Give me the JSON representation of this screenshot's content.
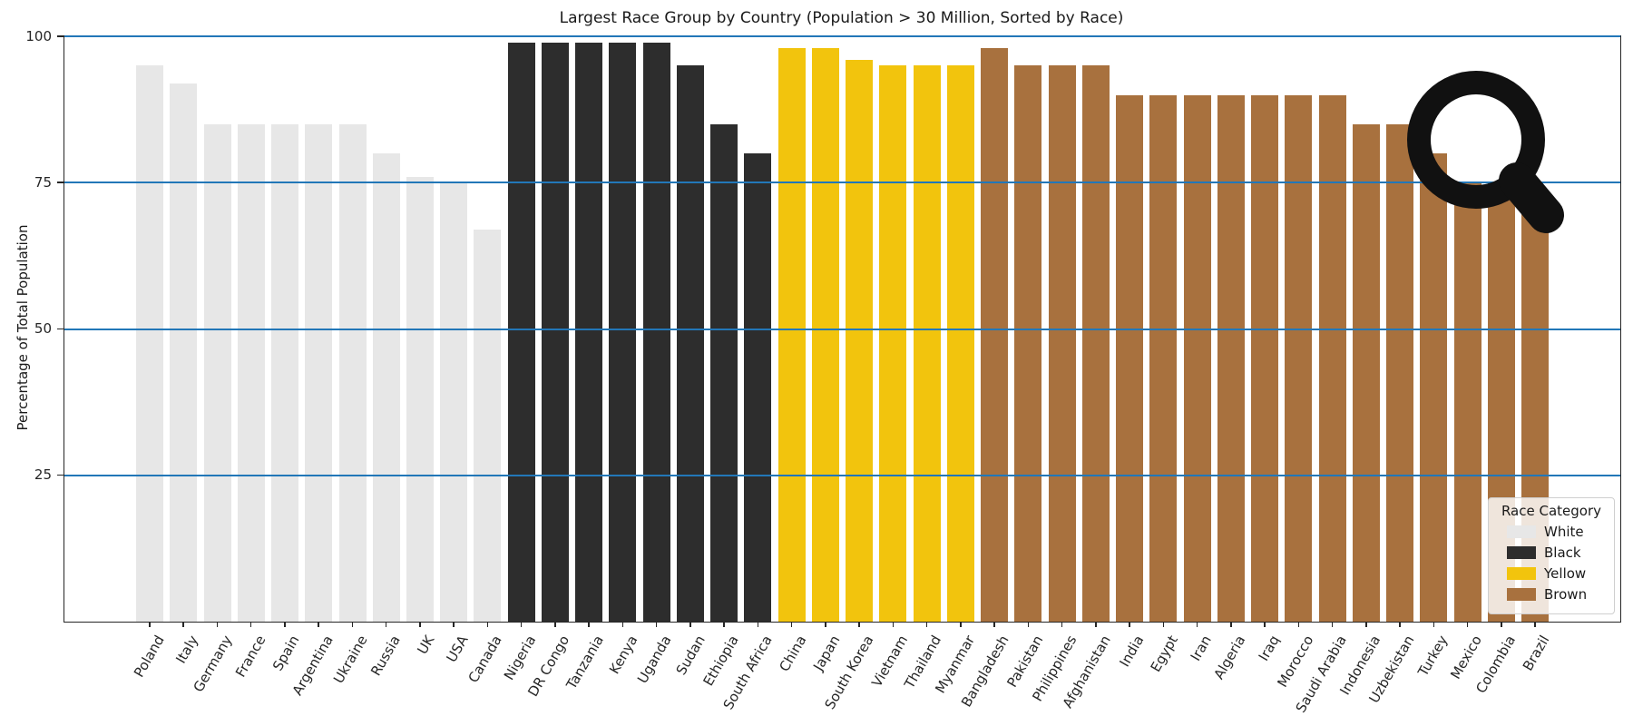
{
  "chart_data": {
    "type": "bar",
    "title": "Largest Race Group by Country (Population > 30 Million, Sorted by Race)",
    "xlabel": "",
    "ylabel": "Percentage of Total Population",
    "ylim": [
      0,
      100
    ],
    "yticks": [
      25,
      50,
      75,
      100
    ],
    "grid": "horizontal blue gridlines at 25/50/75/100 drawn on top of bars",
    "legend": {
      "title": "Race Category",
      "position": "lower right",
      "entries": [
        {
          "label": "White",
          "color": "#e7e7e7"
        },
        {
          "label": "Black",
          "color": "#2d2d2d"
        },
        {
          "label": "Yellow",
          "color": "#f2c40d"
        },
        {
          "label": "Brown",
          "color": "#a8713e"
        }
      ]
    },
    "series": [
      {
        "name": "White",
        "color": "#e7e7e7",
        "points": [
          {
            "country": "Poland",
            "value": 95
          },
          {
            "country": "Italy",
            "value": 92
          },
          {
            "country": "Germany",
            "value": 85
          },
          {
            "country": "France",
            "value": 85
          },
          {
            "country": "Spain",
            "value": 85
          },
          {
            "country": "Argentina",
            "value": 85
          },
          {
            "country": "Ukraine",
            "value": 85
          },
          {
            "country": "Russia",
            "value": 80
          },
          {
            "country": "UK",
            "value": 76
          },
          {
            "country": "USA",
            "value": 75
          },
          {
            "country": "Canada",
            "value": 67
          }
        ]
      },
      {
        "name": "Black",
        "color": "#2d2d2d",
        "points": [
          {
            "country": "Nigeria",
            "value": 99
          },
          {
            "country": "DR Congo",
            "value": 99
          },
          {
            "country": "Tanzania",
            "value": 99
          },
          {
            "country": "Kenya",
            "value": 99
          },
          {
            "country": "Uganda",
            "value": 99
          },
          {
            "country": "Sudan",
            "value": 95
          },
          {
            "country": "Ethiopia",
            "value": 85
          },
          {
            "country": "South Africa",
            "value": 80
          }
        ]
      },
      {
        "name": "Yellow",
        "color": "#f2c40d",
        "points": [
          {
            "country": "China",
            "value": 98
          },
          {
            "country": "Japan",
            "value": 98
          },
          {
            "country": "South Korea",
            "value": 96
          },
          {
            "country": "Vietnam",
            "value": 95
          },
          {
            "country": "Thailand",
            "value": 95
          },
          {
            "country": "Myanmar",
            "value": 95
          }
        ]
      },
      {
        "name": "Brown",
        "color": "#a8713e",
        "points": [
          {
            "country": "Bangladesh",
            "value": 98
          },
          {
            "country": "Pakistan",
            "value": 95
          },
          {
            "country": "Philippines",
            "value": 95
          },
          {
            "country": "Afghanistan",
            "value": 95
          },
          {
            "country": "India",
            "value": 90
          },
          {
            "country": "Egypt",
            "value": 90
          },
          {
            "country": "Iran",
            "value": 90
          },
          {
            "country": "Algeria",
            "value": 90
          },
          {
            "country": "Iraq",
            "value": 90
          },
          {
            "country": "Morocco",
            "value": 90
          },
          {
            "country": "Saudi Arabia",
            "value": 90
          },
          {
            "country": "Indonesia",
            "value": 85
          },
          {
            "country": "Uzbekistan",
            "value": 85
          },
          {
            "country": "Turkey",
            "value": 80
          },
          {
            "country": "Mexico",
            "value": 75
          },
          {
            "country": "Colombia",
            "value": 75
          },
          {
            "country": "Brazil",
            "value": 70
          }
        ]
      }
    ]
  },
  "overlay": {
    "icon": "magnifier-cursor",
    "color": "#111111"
  },
  "colors": {
    "gridline": "#2277b8",
    "axis": "#262626",
    "background": "#ffffff"
  }
}
